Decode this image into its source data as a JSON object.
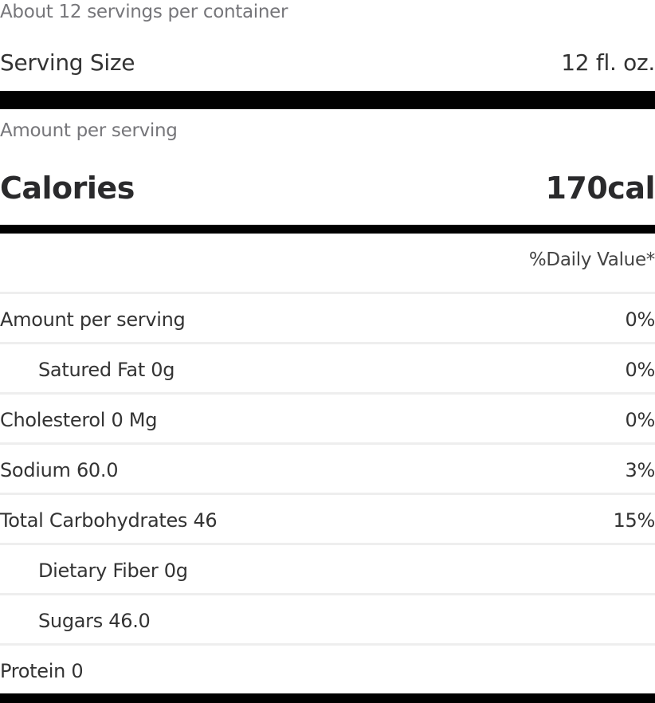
{
  "servings_per_container": "About 12 servings per container",
  "serving_size": {
    "label": "Serving Size",
    "value": "12 fl. oz."
  },
  "amount_per_serving": "Amount per serving",
  "calories": {
    "label": "Calories",
    "value": "170cal"
  },
  "daily_value_header": "%Daily Value*",
  "nutrients": [
    {
      "label": "Amount per serving",
      "value": "0%",
      "indent": false
    },
    {
      "label": "Satured Fat 0g",
      "value": "0%",
      "indent": true
    },
    {
      "label": "Cholesterol 0 Mg",
      "value": "0%",
      "indent": false
    },
    {
      "label": "Sodium 60.0",
      "value": "3%",
      "indent": false
    },
    {
      "label": "Total Carbohydrates 46",
      "value": "15%",
      "indent": false
    },
    {
      "label": "Dietary Fiber 0g",
      "value": "",
      "indent": true
    },
    {
      "label": "Sugars 46.0",
      "value": "",
      "indent": true
    },
    {
      "label": "Protein 0",
      "value": "",
      "indent": false
    }
  ]
}
